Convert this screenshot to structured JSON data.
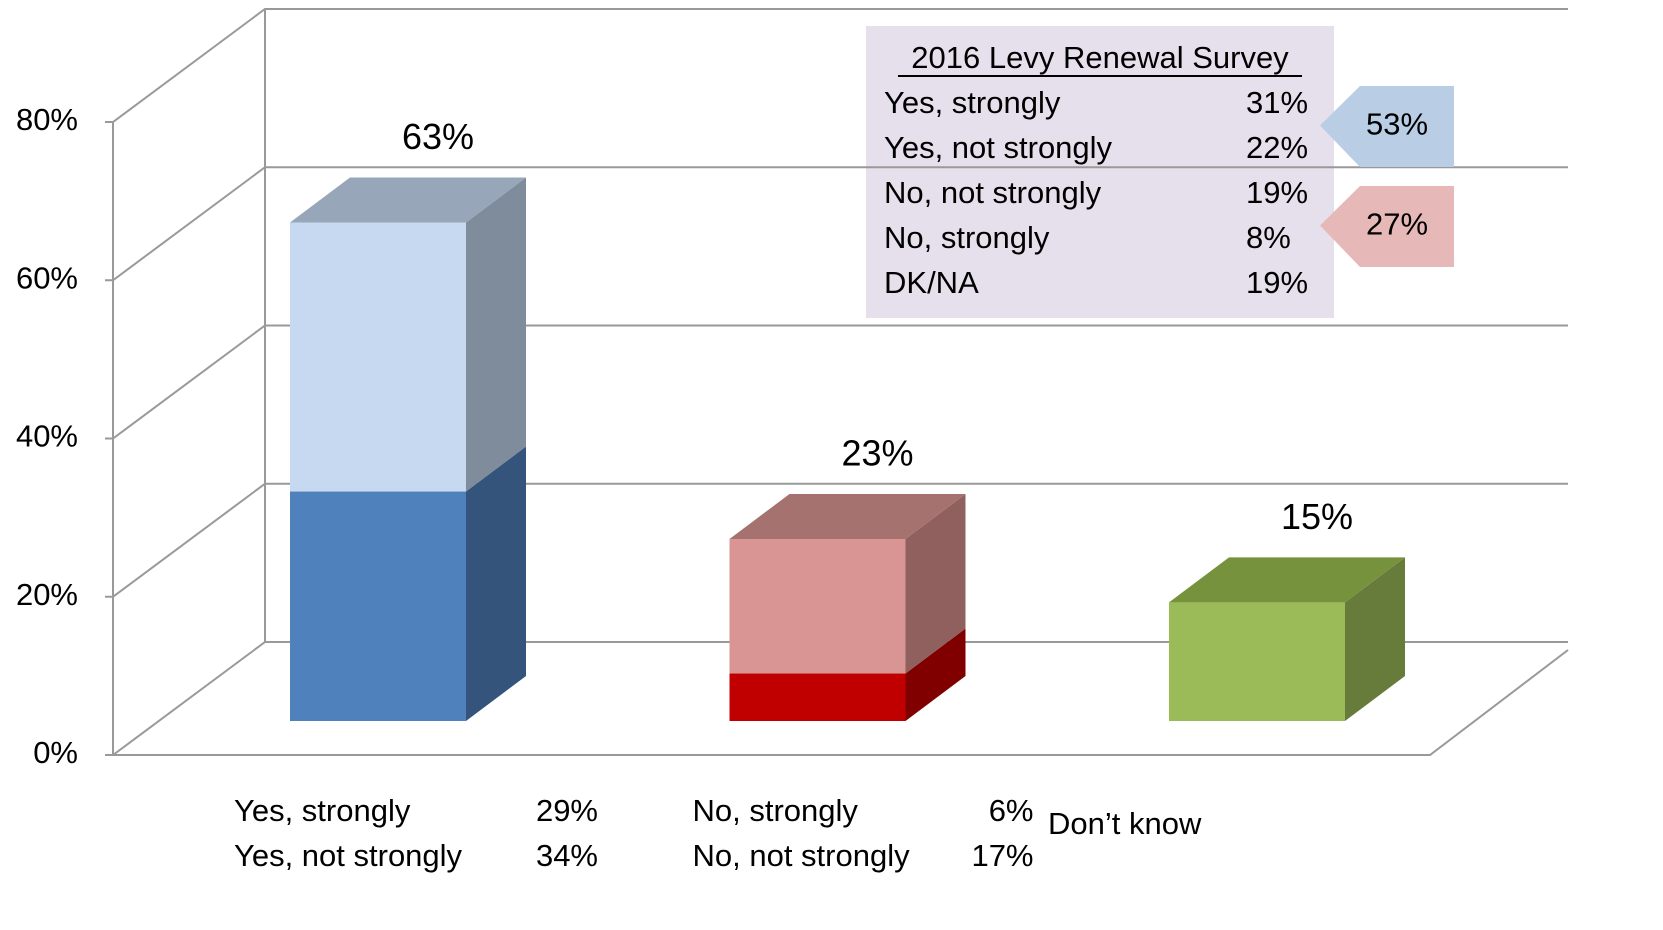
{
  "chart_data": {
    "type": "bar",
    "stacked": true,
    "three_d": true,
    "ylim": [
      0,
      80
    ],
    "yticks": [
      {
        "value": 0,
        "label": "0%"
      },
      {
        "value": 20,
        "label": "20%"
      },
      {
        "value": 40,
        "label": "40%"
      },
      {
        "value": 60,
        "label": "60%"
      },
      {
        "value": 80,
        "label": "80%"
      }
    ],
    "stacks": [
      {
        "total": 63,
        "total_label": "63%",
        "segments": [
          {
            "name": "Yes, strongly",
            "value": 29,
            "value_label": "29%",
            "color": "#4f81bd",
            "side_color": "#34547b",
            "top_color": "#6f8fb8"
          },
          {
            "name": "Yes, not strongly",
            "value": 34,
            "value_label": "34%",
            "color": "#c6d9f1",
            "side_color": "#7f8c9b",
            "top_color": "#97a6b8"
          }
        ]
      },
      {
        "total": 23,
        "total_label": "23%",
        "segments": [
          {
            "name": "No, strongly",
            "value": 6,
            "value_label": "6%",
            "color": "#c00000",
            "side_color": "#800000",
            "top_color": "#9a0000"
          },
          {
            "name": "No, not strongly",
            "value": 17,
            "value_label": "17%",
            "color": "#d99594",
            "side_color": "#8f605e",
            "top_color": "#a5726f"
          }
        ]
      },
      {
        "total": 15,
        "total_label": "15%",
        "segments": [
          {
            "name": "Don’t know",
            "value": 15,
            "color": "#9bbb59",
            "side_color": "#677c3b",
            "top_color": "#76923c"
          }
        ]
      }
    ],
    "inset": {
      "title": "2016 Levy Renewal Survey",
      "rows": [
        [
          "Yes, strongly",
          "31%"
        ],
        [
          "Yes, not strongly",
          "22%"
        ],
        [
          "No, not strongly",
          "19%"
        ],
        [
          "No, strongly",
          "8%"
        ],
        [
          "DK/NA",
          "19%"
        ]
      ],
      "callouts": [
        {
          "label": "53%",
          "color": "#b9cde5"
        },
        {
          "label": "27%",
          "color": "#e6b9b8"
        }
      ]
    }
  }
}
